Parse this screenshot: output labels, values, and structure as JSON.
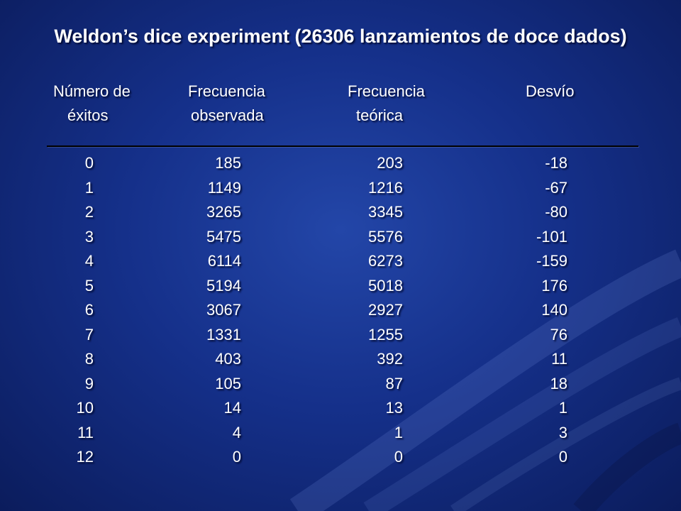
{
  "title": "Weldon’s dice experiment (26306 lanzamientos de doce dados)",
  "headers": [
    {
      "line1": "Número de",
      "line2": "éxitos"
    },
    {
      "line1": "Frecuencia",
      "line2": "observada"
    },
    {
      "line1": "Frecuencia",
      "line2": "teórica"
    },
    {
      "line1": "Desvío",
      "line2": ""
    }
  ],
  "rows": [
    [
      "0",
      "185",
      "203",
      "-18"
    ],
    [
      "1",
      "1149",
      "1216",
      "-67"
    ],
    [
      "2",
      "3265",
      "3345",
      "-80"
    ],
    [
      "3",
      "5475",
      "5576",
      "-101"
    ],
    [
      "4",
      "6114",
      "6273",
      "-159"
    ],
    [
      "5",
      "5194",
      "5018",
      "176"
    ],
    [
      "6",
      "3067",
      "2927",
      "140"
    ],
    [
      "7",
      "1331",
      "1255",
      "76"
    ],
    [
      "8",
      "403",
      "392",
      "11"
    ],
    [
      "9",
      "105",
      "87",
      "18"
    ],
    [
      "10",
      "14",
      "13",
      "1"
    ],
    [
      "11",
      "4",
      "1",
      "3"
    ],
    [
      "12",
      "0",
      "0",
      "0"
    ]
  ],
  "colors": {
    "background_center": "#2346a8",
    "background_edge": "#0b1c5c",
    "text": "#ffffff",
    "rule": "#000000"
  }
}
